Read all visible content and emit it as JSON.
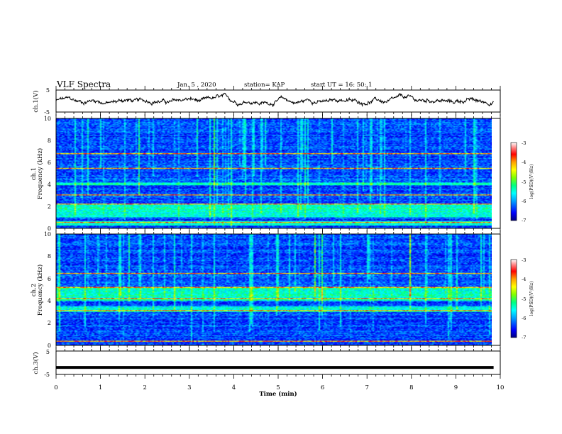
{
  "header": {
    "title": "VLF Spectra",
    "date": "Jan. 5 , 2020",
    "station": "station= KAP",
    "start_time": "start UT = 16: 50: 1"
  },
  "x_axis": {
    "label": "Time (min)",
    "range": [
      0,
      10
    ],
    "ticks": [
      "0",
      "1",
      "2",
      "3",
      "4",
      "5",
      "6",
      "7",
      "8",
      "9",
      "10"
    ]
  },
  "panels": {
    "ch1_waveform": {
      "label": "ch.1(V)",
      "ylim": [
        -5,
        5
      ],
      "ticks": [
        "5",
        "-5"
      ]
    },
    "ch1_spectrogram": {
      "label_channel": "ch.1",
      "label_axis": "Frequency (kHz)",
      "ylim": [
        0,
        10
      ],
      "ticks": [
        "0",
        "2",
        "4",
        "6",
        "8",
        "10"
      ]
    },
    "ch2_spectrogram": {
      "label_channel": "ch.2",
      "label_axis": "Frequency (kHz)",
      "ylim": [
        0,
        10
      ],
      "ticks": [
        "0",
        "2",
        "4",
        "6",
        "8",
        "10"
      ]
    },
    "ch3_waveform": {
      "label": "ch.3(V)",
      "ylim": [
        -5,
        5
      ],
      "ticks": [
        "5",
        "-5"
      ]
    }
  },
  "colorbar": {
    "label": "log(PSD)(V²/Hz)",
    "range": [
      -7,
      -3
    ],
    "ticks": [
      "-3",
      "-4",
      "-5",
      "-6",
      "-7"
    ],
    "colors": [
      "#000080",
      "#0000ff",
      "#00a0ff",
      "#00ffff",
      "#00ff80",
      "#80ff00",
      "#ffff00",
      "#ffa000",
      "#ff0000",
      "#ff8080",
      "#ffffff"
    ]
  },
  "chart_data": {
    "type": "heatmap",
    "title": "VLF Spectra",
    "xlabel": "Time (min)",
    "xlim": [
      0,
      9.85
    ],
    "series": [
      {
        "name": "ch.1",
        "kind": "waveform",
        "ylim": [
          -5,
          5
        ],
        "mean": 0,
        "amplitude": 2.5
      },
      {
        "name": "ch.1",
        "kind": "spectrogram",
        "ylim": [
          0,
          10
        ],
        "bands_khz": [
          [
            0.2,
            0.6
          ],
          [
            1.0,
            2.2
          ],
          [
            3.9,
            4.2
          ]
        ],
        "lines_khz": [
          0.5,
          2.2,
          3.0,
          5.5,
          6.8
        ]
      },
      {
        "name": "ch.2",
        "kind": "spectrogram",
        "ylim": [
          0,
          10
        ],
        "bands_khz": [
          [
            4.0,
            5.2
          ],
          [
            3.0,
            3.5
          ]
        ],
        "lines_khz": [
          0.3,
          3.1,
          4.2,
          5.2,
          6.5
        ]
      },
      {
        "name": "ch.3",
        "kind": "waveform",
        "ylim": [
          -5,
          5
        ],
        "mean": -2,
        "amplitude": 0.1
      }
    ]
  }
}
